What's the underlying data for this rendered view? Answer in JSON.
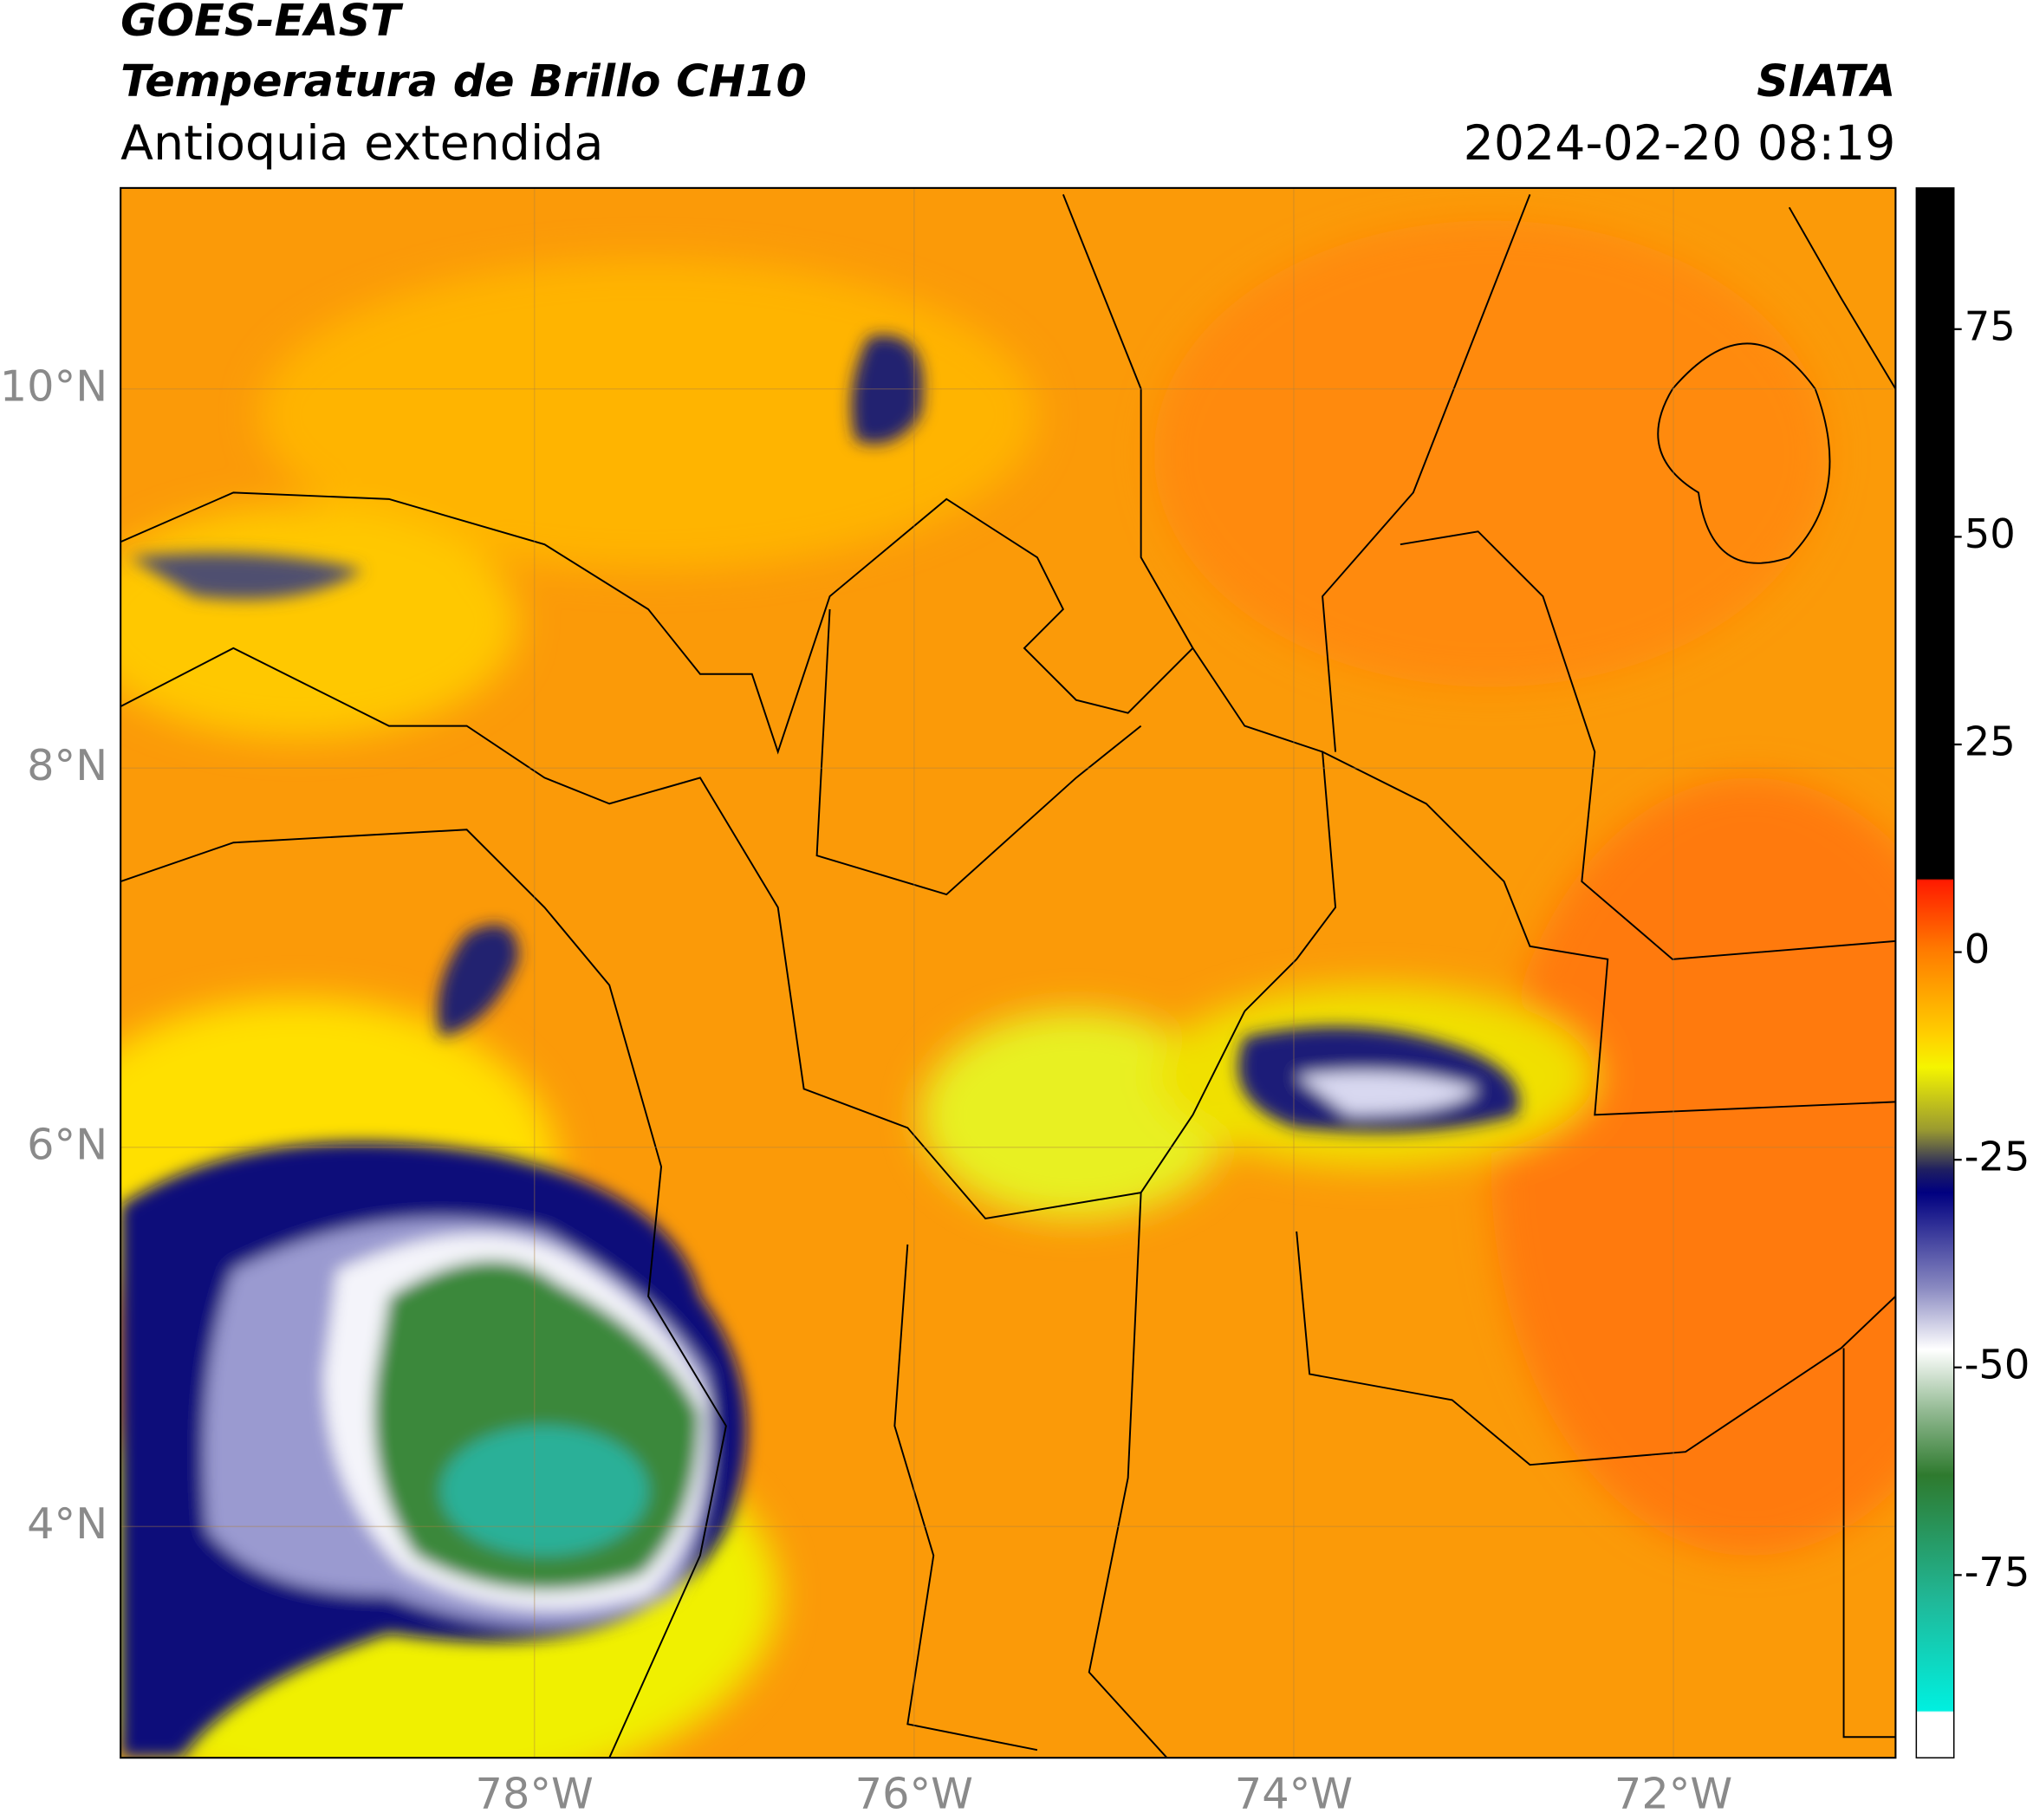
{
  "header": {
    "title": "GOES-EAST",
    "subtitle": "Temperatura de Brillo CH10",
    "region": "Antioquia extendida",
    "source": "SIATA",
    "datetime": "2024-02-20 08:19"
  },
  "map": {
    "xlim": [
      -80.18,
      -70.83
    ],
    "ylim": [
      2.78,
      11.06
    ],
    "xticks": [
      {
        "value": -78,
        "label": "78°W"
      },
      {
        "value": -76,
        "label": "76°W"
      },
      {
        "value": -74,
        "label": "74°W"
      },
      {
        "value": -72,
        "label": "72°W"
      }
    ],
    "yticks": [
      {
        "value": 4,
        "label": "4°N"
      },
      {
        "value": 6,
        "label": "6°N"
      },
      {
        "value": 8,
        "label": "8°N"
      },
      {
        "value": 10,
        "label": "10°N"
      }
    ],
    "grid": true
  },
  "colorbar": {
    "lim": [
      -97,
      92
    ],
    "ticks": [
      -75,
      -50,
      -25,
      0,
      25,
      50,
      75
    ]
  }
}
